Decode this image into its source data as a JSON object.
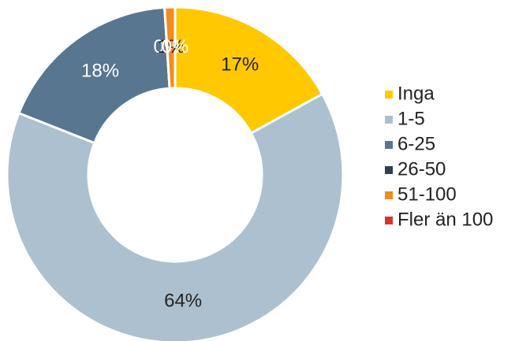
{
  "chart_data": {
    "type": "donut",
    "categories": [
      "Inga",
      "1-5",
      "6-25",
      "26-50",
      "51-100",
      "Fler än 100"
    ],
    "values": [
      17,
      64,
      18,
      0,
      1,
      0
    ],
    "value_labels": [
      "17%",
      "64%",
      "18%",
      "0%",
      "1%",
      "0%"
    ],
    "colors": [
      "#ffc800",
      "#adc0cf",
      "#587690",
      "#2f3f50",
      "#f28c1c",
      "#d9342b"
    ],
    "legend": "right"
  }
}
